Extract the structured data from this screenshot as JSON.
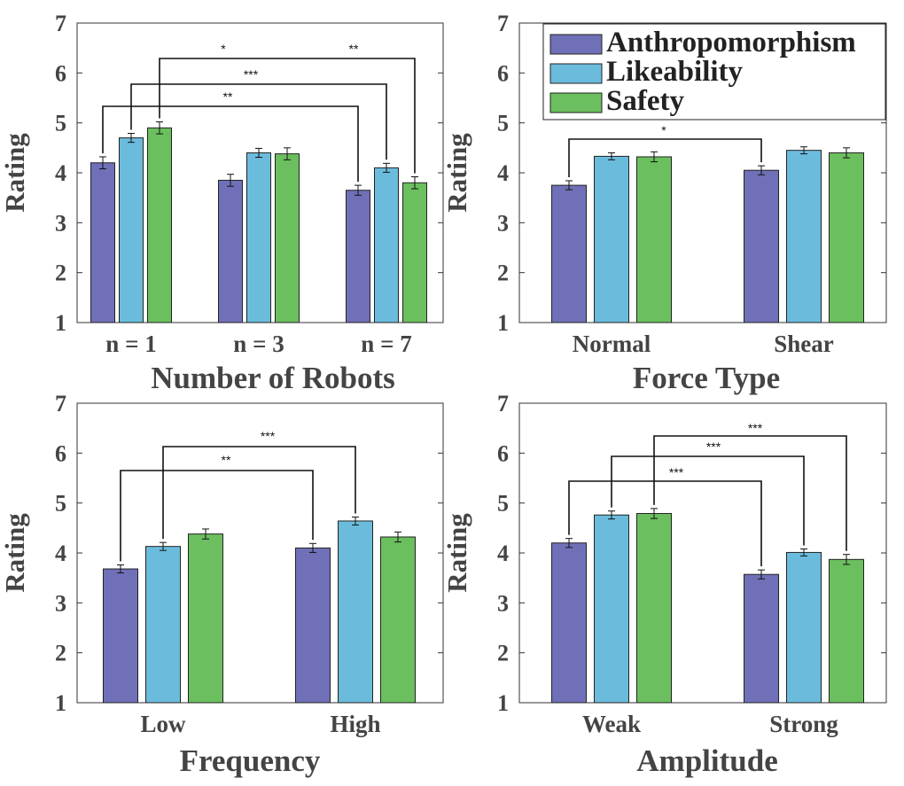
{
  "colors": {
    "Anthropomorphism": "#7070b8",
    "Likeability": "#6bbcdc",
    "Safety": "#6bbf5e",
    "axis": "#333333",
    "text": "#444444"
  },
  "legend": [
    "Anthropomorphism",
    "Likeability",
    "Safety"
  ],
  "chart_data": [
    {
      "type": "bar",
      "xlabel": "Number of Robots",
      "ylabel": "Rating",
      "ylim": [
        1,
        7
      ],
      "yticks": [
        1,
        2,
        3,
        4,
        5,
        6,
        7
      ],
      "categories": [
        "n = 1",
        "n = 3",
        "n = 7"
      ],
      "series": [
        {
          "name": "Anthropomorphism",
          "values": [
            4.2,
            3.85,
            3.65
          ],
          "errors": [
            0.12,
            0.12,
            0.1
          ]
        },
        {
          "name": "Likeability",
          "values": [
            4.7,
            4.4,
            4.1
          ],
          "errors": [
            0.09,
            0.09,
            0.09
          ]
        },
        {
          "name": "Safety",
          "values": [
            4.9,
            4.38,
            3.8
          ],
          "errors": [
            0.12,
            0.12,
            0.12
          ]
        }
      ],
      "significance": [
        {
          "from": [
            0,
            2
          ],
          "to": [
            2,
            2
          ],
          "label": "*",
          "label2": "**"
        },
        {
          "from": [
            0,
            1
          ],
          "to": [
            2,
            1
          ],
          "label": "***"
        },
        {
          "from": [
            0,
            0
          ],
          "to": [
            2,
            0
          ],
          "label": "**"
        }
      ],
      "legend_shown": false
    },
    {
      "type": "bar",
      "xlabel": "Force Type",
      "ylabel": "Rating",
      "ylim": [
        1,
        7
      ],
      "yticks": [
        1,
        2,
        3,
        4,
        5,
        6,
        7
      ],
      "categories": [
        "Normal",
        "Shear"
      ],
      "series": [
        {
          "name": "Anthropomorphism",
          "values": [
            3.75,
            4.05
          ],
          "errors": [
            0.09,
            0.09
          ]
        },
        {
          "name": "Likeability",
          "values": [
            4.33,
            4.45
          ],
          "errors": [
            0.07,
            0.07
          ]
        },
        {
          "name": "Safety",
          "values": [
            4.32,
            4.4
          ],
          "errors": [
            0.1,
            0.1
          ]
        }
      ],
      "significance": [
        {
          "from": [
            0,
            0
          ],
          "to": [
            1,
            0
          ],
          "label": "*"
        }
      ],
      "legend_shown": true,
      "legend_position": "top-right"
    },
    {
      "type": "bar",
      "xlabel": "Frequency",
      "ylabel": "Rating",
      "ylim": [
        1,
        7
      ],
      "yticks": [
        1,
        2,
        3,
        4,
        5,
        6,
        7
      ],
      "categories": [
        "Low",
        "High"
      ],
      "series": [
        {
          "name": "Anthropomorphism",
          "values": [
            3.68,
            4.1
          ],
          "errors": [
            0.08,
            0.09
          ]
        },
        {
          "name": "Likeability",
          "values": [
            4.13,
            4.64
          ],
          "errors": [
            0.08,
            0.08
          ]
        },
        {
          "name": "Safety",
          "values": [
            4.38,
            4.32
          ],
          "errors": [
            0.1,
            0.1
          ]
        }
      ],
      "significance": [
        {
          "from": [
            0,
            1
          ],
          "to": [
            1,
            1
          ],
          "label": "***"
        },
        {
          "from": [
            0,
            0
          ],
          "to": [
            1,
            0
          ],
          "label": "**"
        }
      ],
      "legend_shown": false
    },
    {
      "type": "bar",
      "xlabel": "Amplitude",
      "ylabel": "Rating",
      "ylim": [
        1,
        7
      ],
      "yticks": [
        1,
        2,
        3,
        4,
        5,
        6,
        7
      ],
      "categories": [
        "Weak",
        "Strong"
      ],
      "series": [
        {
          "name": "Anthropomorphism",
          "values": [
            4.2,
            3.57
          ],
          "errors": [
            0.09,
            0.09
          ]
        },
        {
          "name": "Likeability",
          "values": [
            4.76,
            4.01
          ],
          "errors": [
            0.08,
            0.07
          ]
        },
        {
          "name": "Safety",
          "values": [
            4.79,
            3.87
          ],
          "errors": [
            0.1,
            0.1
          ]
        }
      ],
      "significance": [
        {
          "from": [
            0,
            2
          ],
          "to": [
            1,
            2
          ],
          "label": "***"
        },
        {
          "from": [
            0,
            1
          ],
          "to": [
            1,
            1
          ],
          "label": "***"
        },
        {
          "from": [
            0,
            0
          ],
          "to": [
            1,
            0
          ],
          "label": "***"
        }
      ],
      "legend_shown": false
    }
  ]
}
